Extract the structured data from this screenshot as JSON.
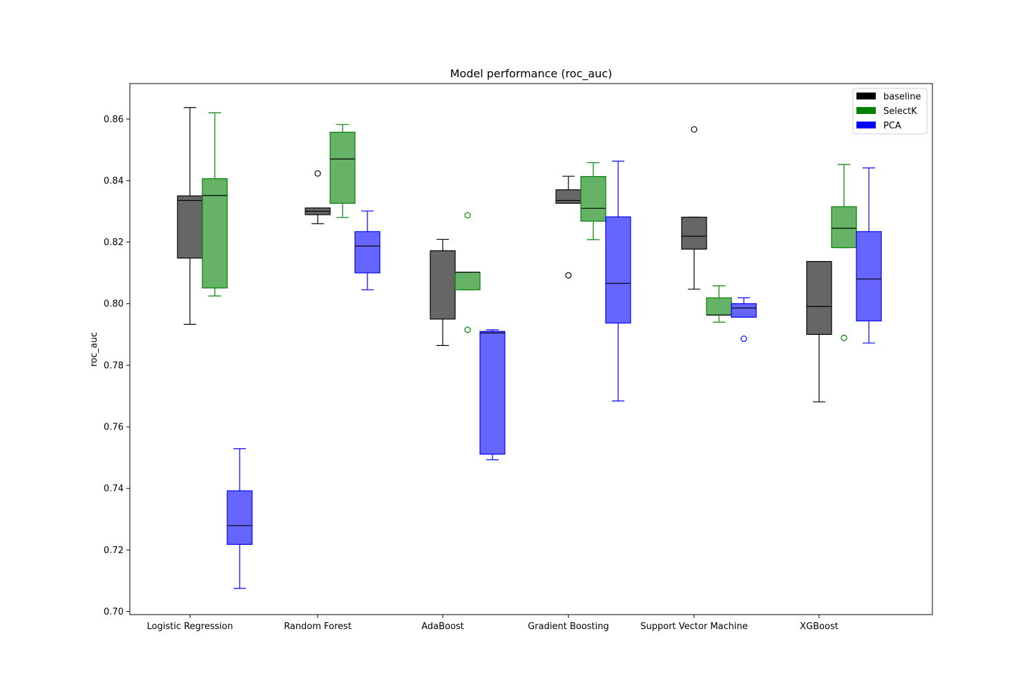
{
  "chart_data": {
    "type": "box",
    "title": "Model performance (roc_auc)",
    "xlabel": "",
    "ylabel": "roc_auc",
    "ylim": [
      0.699,
      0.8715
    ],
    "yticks": [
      0.7,
      0.72,
      0.74,
      0.76,
      0.78,
      0.8,
      0.82,
      0.84,
      0.86
    ],
    "ytick_labels": [
      "0.70",
      "0.72",
      "0.74",
      "0.76",
      "0.78",
      "0.80",
      "0.82",
      "0.84",
      "0.86"
    ],
    "grid": false,
    "legend_position": "top-right",
    "categories": [
      "Logistic Regression",
      "Random Forest",
      "AdaBoost",
      "Gradient Boosting",
      "Support Vector Machine",
      "XGBoost"
    ],
    "series": [
      {
        "name": "baseline",
        "color": "#000000",
        "boxes": [
          {
            "whislo": 0.7933,
            "q1": 0.8148,
            "med": 0.8335,
            "q3": 0.835,
            "whishi": 0.8637,
            "fliers": []
          },
          {
            "whislo": 0.826,
            "q1": 0.8289,
            "med": 0.83,
            "q3": 0.8311,
            "whishi": 0.8311,
            "fliers": [
              0.8423
            ]
          },
          {
            "whislo": 0.7864,
            "q1": 0.795,
            "med": 0.8172,
            "q3": 0.8172,
            "whishi": 0.8209,
            "fliers": []
          },
          {
            "whislo": 0.8326,
            "q1": 0.8326,
            "med": 0.8335,
            "q3": 0.837,
            "whishi": 0.8414,
            "fliers": [
              0.8092
            ]
          },
          {
            "whislo": 0.8047,
            "q1": 0.8177,
            "med": 0.8219,
            "q3": 0.8281,
            "whishi": 0.8281,
            "fliers": [
              0.8566
            ]
          },
          {
            "whislo": 0.7681,
            "q1": 0.79,
            "med": 0.7991,
            "q3": 0.8137,
            "whishi": 0.8137,
            "fliers": []
          }
        ]
      },
      {
        "name": "SelectK",
        "color": "#008000",
        "boxes": [
          {
            "whislo": 0.8025,
            "q1": 0.8051,
            "med": 0.8351,
            "q3": 0.8406,
            "whishi": 0.862,
            "fliers": []
          },
          {
            "whislo": 0.828,
            "q1": 0.8326,
            "med": 0.847,
            "q3": 0.8557,
            "whishi": 0.8582,
            "fliers": []
          },
          {
            "whislo": 0.8045,
            "q1": 0.8045,
            "med": 0.8102,
            "q3": 0.8102,
            "whishi": 0.8102,
            "fliers": [
              0.8287,
              0.7915
            ]
          },
          {
            "whislo": 0.8208,
            "q1": 0.8268,
            "med": 0.831,
            "q3": 0.8413,
            "whishi": 0.8458,
            "fliers": []
          },
          {
            "whislo": 0.794,
            "q1": 0.7963,
            "med": 0.7963,
            "q3": 0.8019,
            "whishi": 0.8058,
            "fliers": []
          },
          {
            "whislo": 0.8182,
            "q1": 0.8182,
            "med": 0.8245,
            "q3": 0.8315,
            "whishi": 0.8452,
            "fliers": [
              0.7889
            ]
          }
        ]
      },
      {
        "name": "PCA",
        "color": "#0000ff",
        "boxes": [
          {
            "whislo": 0.7075,
            "q1": 0.7218,
            "med": 0.7279,
            "q3": 0.7392,
            "whishi": 0.7529,
            "fliers": []
          },
          {
            "whislo": 0.8045,
            "q1": 0.81,
            "med": 0.8187,
            "q3": 0.8234,
            "whishi": 0.8301,
            "fliers": []
          },
          {
            "whislo": 0.7493,
            "q1": 0.7511,
            "med": 0.7905,
            "q3": 0.791,
            "whishi": 0.7915,
            "fliers": []
          },
          {
            "whislo": 0.7684,
            "q1": 0.7937,
            "med": 0.8066,
            "q3": 0.8282,
            "whishi": 0.8463,
            "fliers": []
          },
          {
            "whislo": 0.7956,
            "q1": 0.7956,
            "med": 0.7986,
            "q3": 0.8,
            "whishi": 0.8019,
            "fliers": [
              0.7886
            ]
          },
          {
            "whislo": 0.7872,
            "q1": 0.7944,
            "med": 0.808,
            "q3": 0.8234,
            "whishi": 0.8441,
            "fliers": []
          }
        ]
      }
    ]
  }
}
